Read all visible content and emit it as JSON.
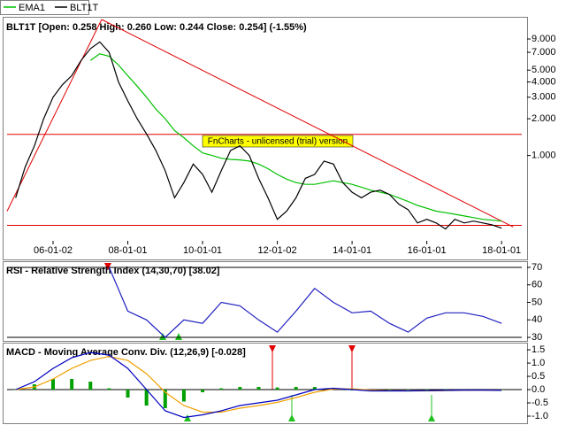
{
  "chart_data": [
    {
      "type": "line",
      "title": "BLT1T [Open: 0.258 High: 0.260 Low: 0.244 Close: 0.254] (-1.55%)",
      "annotation": "FnCharts - unlicensed (trial) version",
      "log": true,
      "x": [
        2005,
        2005.25,
        2005.5,
        2005.75,
        2006,
        2006.25,
        2006.5,
        2006.75,
        2007,
        2007.25,
        2007.5,
        2007.75,
        2008,
        2008.25,
        2008.5,
        2008.75,
        2009,
        2009.25,
        2009.5,
        2009.75,
        2010,
        2010.25,
        2010.5,
        2010.75,
        2011,
        2011.25,
        2011.5,
        2011.75,
        2012,
        2012.25,
        2012.5,
        2012.75,
        2013,
        2013.25,
        2013.5,
        2013.75,
        2014,
        2014.25,
        2014.5,
        2014.75,
        2015,
        2015.25,
        2015.5,
        2015.75,
        2016,
        2016.25,
        2016.5,
        2016.75,
        2017,
        2017.25,
        2017.5,
        2017.75,
        2018
      ],
      "series": [
        {
          "name": "EMA1",
          "color": "#00c000",
          "values": [
            null,
            null,
            null,
            null,
            null,
            null,
            null,
            null,
            6.0,
            6.8,
            6.5,
            5.5,
            4.5,
            3.7,
            3.0,
            2.4,
            2.0,
            1.6,
            1.4,
            1.2,
            1.05,
            1.0,
            0.95,
            0.93,
            0.92,
            0.9,
            0.85,
            0.78,
            0.7,
            0.64,
            0.6,
            0.58,
            0.58,
            0.6,
            0.62,
            0.6,
            0.58,
            0.55,
            0.52,
            0.5,
            0.48,
            0.45,
            0.42,
            0.39,
            0.37,
            0.35,
            0.34,
            0.33,
            0.32,
            0.31,
            0.3,
            0.295,
            0.29
          ]
        },
        {
          "name": "BLT1T",
          "color": "#000000",
          "values": [
            0.45,
            0.8,
            1.2,
            2.0,
            3.0,
            3.8,
            4.5,
            6.0,
            7.5,
            8.5,
            7,
            4,
            2.8,
            2.0,
            1.5,
            1.1,
            0.75,
            0.45,
            0.6,
            0.85,
            0.7,
            0.5,
            0.75,
            1.1,
            1.2,
            1.0,
            0.65,
            0.45,
            0.3,
            0.35,
            0.45,
            0.65,
            0.7,
            0.9,
            0.85,
            0.6,
            0.5,
            0.45,
            0.5,
            0.52,
            0.48,
            0.4,
            0.36,
            0.28,
            0.3,
            0.28,
            0.25,
            0.3,
            0.28,
            0.29,
            0.28,
            0.27,
            0.254
          ]
        }
      ],
      "line_color": "#e00000",
      "lines": [
        {
          "x": [
            2004.77,
            2007.3
          ],
          "values": [
            0.35,
            13
          ]
        },
        {
          "x": [
            2007.3,
            2018.31
          ],
          "values": [
            13,
            0.26
          ]
        },
        {
          "x": [
            2004.77,
            2018.54
          ],
          "values": [
            1.49,
            1.49
          ]
        },
        {
          "x": [
            2004.77,
            2018.54
          ],
          "values": [
            0.268,
            0.268
          ]
        }
      ],
      "xlim": [
        2004.77,
        2018.54
      ],
      "xticks": [
        {
          "value": 2006,
          "label": "06-01-02"
        },
        {
          "value": 2008,
          "label": "08-01-01"
        },
        {
          "value": 2010,
          "label": "10-01-01"
        },
        {
          "value": 2012,
          "label": "12-01-02"
        },
        {
          "value": 2014,
          "label": "14-01-01"
        },
        {
          "value": 2016,
          "label": "16-01-01"
        },
        {
          "value": 2018,
          "label": "18-01-01"
        }
      ],
      "ylim": [
        0.2,
        13
      ],
      "yticks": [
        {
          "value": 9,
          "label": "9.000"
        },
        {
          "value": 7,
          "label": "7.000"
        },
        {
          "value": 5,
          "label": "5.000"
        },
        {
          "value": 4,
          "label": "4.000"
        },
        {
          "value": 3,
          "label": "3.000"
        },
        {
          "value": 2,
          "label": "2.000"
        },
        {
          "value": 1,
          "label": "1.000"
        }
      ]
    },
    {
      "type": "line",
      "title": "RSI - Relative Strength Index (14,30,70) [38.02]",
      "x": [
        2005,
        2005.5,
        2006,
        2006.5,
        2007,
        2007.5,
        2008,
        2008.5,
        2009,
        2009.5,
        2010,
        2010.5,
        2011,
        2011.5,
        2012,
        2012.5,
        2013,
        2013.5,
        2014,
        2014.5,
        2015,
        2015.5,
        2016,
        2016.5,
        2017,
        2017.5,
        2018
      ],
      "series": [
        {
          "color": "#2020c0",
          "values": [
            null,
            null,
            null,
            null,
            null,
            70,
            45,
            40,
            30,
            40,
            38,
            50,
            48,
            40,
            33,
            45,
            58,
            50,
            44,
            45,
            38,
            33,
            41,
            44,
            44,
            42,
            38.02
          ]
        }
      ],
      "levels": [
        30,
        70
      ],
      "xlim": [
        2004.77,
        2018.54
      ],
      "ylim": [
        29,
        72.5
      ],
      "yticks": [
        30,
        40,
        50,
        60,
        70
      ]
    },
    {
      "type": "line",
      "title": "MACD - Moving Average Conv. Div. (12,26,9) [-0.028]",
      "x": [
        2005,
        2005.5,
        2006,
        2006.5,
        2007,
        2007.5,
        2008,
        2008.5,
        2009,
        2009.5,
        2010,
        2010.5,
        2011,
        2011.5,
        2012,
        2012.5,
        2013,
        2013.5,
        2014,
        2014.5,
        2015,
        2015.5,
        2016,
        2016.5,
        2017,
        2017.5,
        2018
      ],
      "series": [
        {
          "type": "bar",
          "color": "#00a000",
          "values": [
            0,
            0.2,
            0.4,
            0.4,
            0.3,
            0.05,
            -0.3,
            -0.6,
            -0.7,
            -0.45,
            -0.1,
            0.05,
            0.1,
            0.1,
            0.08,
            0.1,
            0.1,
            0.03,
            -0.03,
            -0.03,
            -0.01,
            0,
            0.005,
            0.005,
            0.005,
            0,
            -0.003
          ]
        },
        {
          "color": "#f0a000",
          "values": [
            0,
            0.1,
            0.4,
            0.8,
            1.1,
            1.25,
            1.1,
            0.6,
            -0.1,
            -0.6,
            -0.85,
            -0.85,
            -0.7,
            -0.6,
            -0.48,
            -0.3,
            -0.1,
            0.02,
            0.03,
            -0.02,
            -0.04,
            -0.05,
            -0.045,
            -0.035,
            -0.025,
            -0.02,
            -0.025
          ]
        },
        {
          "color": "#0000c0",
          "values": [
            0,
            0.3,
            0.8,
            1.2,
            1.4,
            1.3,
            0.8,
            0.0,
            -0.8,
            -1.05,
            -0.95,
            -0.8,
            -0.6,
            -0.5,
            -0.4,
            -0.2,
            0.0,
            0.05,
            0.0,
            -0.05,
            -0.05,
            -0.05,
            -0.04,
            -0.03,
            -0.02,
            -0.02,
            -0.028
          ]
        }
      ],
      "levels": [
        0
      ],
      "xlim": [
        2004.77,
        2018.54
      ],
      "ylim": [
        -1.2,
        1.67
      ],
      "yticks": [
        1.5,
        {
          "value": 1,
          "label": "1.0"
        },
        0.5,
        {
          "value": 0,
          "label": "0.0"
        },
        -0.5,
        {
          "value": -1,
          "label": "-1.0"
        }
      ]
    }
  ]
}
